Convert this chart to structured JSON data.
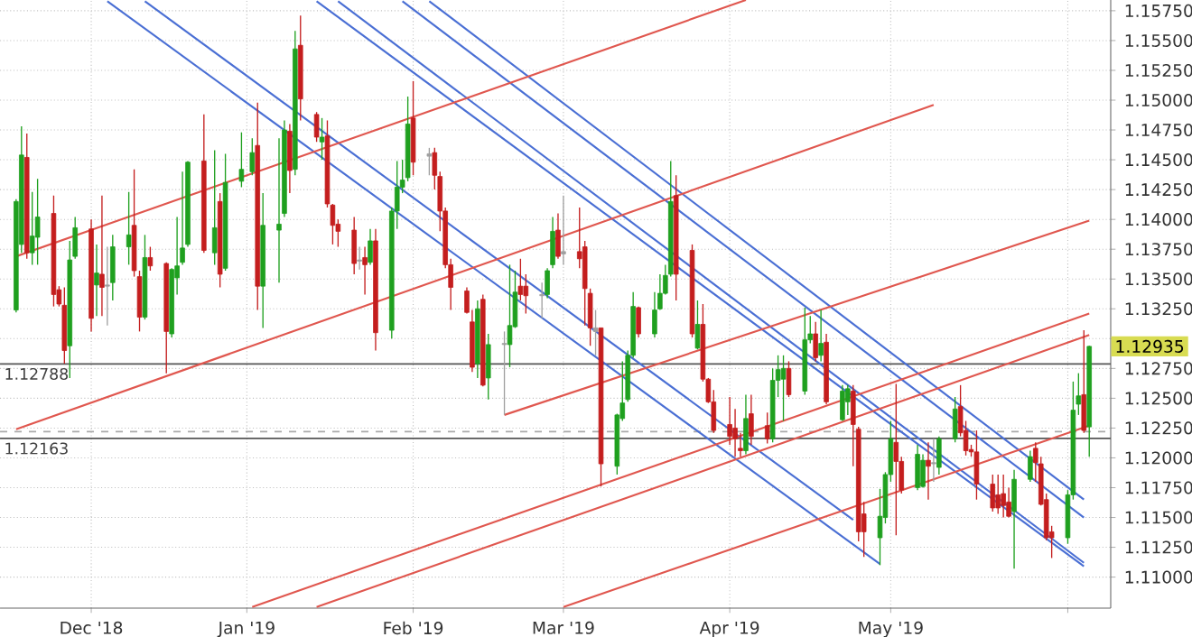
{
  "chart_data": {
    "type": "candlestick",
    "xlim": [
      "2018-11-16",
      "2019-06-11"
    ],
    "ylim": [
      1.1074,
      1.1584
    ],
    "xticks": [
      {
        "value": "2018-12-03",
        "label": "Dec '18"
      },
      {
        "value": "2019-01-01",
        "label": "Jan '19"
      },
      {
        "value": "2019-02-01",
        "label": "Feb '19"
      },
      {
        "value": "2019-03-01",
        "label": "Mar '19"
      },
      {
        "value": "2019-04-01",
        "label": "Apr '19"
      },
      {
        "value": "2019-05-01",
        "label": "May '19"
      },
      {
        "value": "2019-06-03",
        "label": null
      }
    ],
    "yticks": [
      {
        "value": 1.11,
        "label": "1.11000"
      },
      {
        "value": 1.1125,
        "label": "1.11250"
      },
      {
        "value": 1.115,
        "label": "1.11500"
      },
      {
        "value": 1.1175,
        "label": "1.11750"
      },
      {
        "value": 1.12,
        "label": "1.12000"
      },
      {
        "value": 1.1225,
        "label": "1.12250"
      },
      {
        "value": 1.125,
        "label": "1.12500"
      },
      {
        "value": 1.1275,
        "label": "1.12750"
      },
      {
        "value": 1.13,
        "label": null
      },
      {
        "value": 1.1325,
        "label": "1.13250"
      },
      {
        "value": 1.135,
        "label": "1.13500"
      },
      {
        "value": 1.1375,
        "label": "1.13750"
      },
      {
        "value": 1.14,
        "label": "1.14000"
      },
      {
        "value": 1.1425,
        "label": "1.14250"
      },
      {
        "value": 1.145,
        "label": "1.14500"
      },
      {
        "value": 1.1475,
        "label": "1.14750"
      },
      {
        "value": 1.15,
        "label": "1.15000"
      },
      {
        "value": 1.1525,
        "label": "1.15250"
      },
      {
        "value": 1.155,
        "label": "1.15500"
      },
      {
        "value": 1.1575,
        "label": "1.15750"
      }
    ],
    "grid": true,
    "ref_lines": [
      {
        "axis": "y",
        "value": 1.12788,
        "label": "1.12788",
        "color": "#555555"
      },
      {
        "axis": "y",
        "value": 1.12163,
        "label": "1.12163",
        "color": "#555555"
      },
      {
        "axis": "y",
        "value": 1.1222,
        "color": "#aaaaaa",
        "line_style": "dashed"
      }
    ],
    "annotations": [
      "1.12935"
    ],
    "series": [
      {
        "type": "line",
        "color": "#4a6fd4",
        "x": [
          "2018-12-06",
          "2019-04-29"
        ],
        "values": [
          1.1583,
          1.1111
        ]
      },
      {
        "type": "line",
        "color": "#4a6fd4",
        "x": [
          "2018-12-13",
          "2019-04-24"
        ],
        "values": [
          1.1583,
          1.1148
        ]
      },
      {
        "type": "line",
        "color": "#4a6fd4",
        "x": [
          "2019-01-14",
          "2019-06-06"
        ],
        "values": [
          1.1583,
          1.1109
        ]
      },
      {
        "type": "line",
        "color": "#4a6fd4",
        "x": [
          "2019-01-18",
          "2019-06-06"
        ],
        "values": [
          1.1583,
          1.1112
        ]
      },
      {
        "type": "line",
        "color": "#4a6fd4",
        "x": [
          "2019-01-30",
          "2019-06-06"
        ],
        "values": [
          1.1583,
          1.115
        ]
      },
      {
        "type": "line",
        "color": "#4a6fd4",
        "x": [
          "2019-02-04",
          "2019-06-06"
        ],
        "values": [
          1.1583,
          1.1165
        ]
      },
      {
        "type": "line",
        "color": "#e0574f",
        "x": [
          "2018-11-19",
          "2019-04-04"
        ],
        "values": [
          1.1369,
          1.1584
        ]
      },
      {
        "type": "line",
        "color": "#e0574f",
        "x": [
          "2018-11-19",
          "2019-05-09"
        ],
        "values": [
          1.1224,
          1.1496
        ]
      },
      {
        "type": "line",
        "color": "#e0574f",
        "x": [
          "2019-02-18",
          "2019-06-07"
        ],
        "values": [
          1.1236,
          1.1399
        ]
      },
      {
        "type": "line",
        "color": "#e0574f",
        "x": [
          "2019-01-02",
          "2019-06-07"
        ],
        "values": [
          1.1075,
          1.1321
        ]
      },
      {
        "type": "line",
        "color": "#e0574f",
        "x": [
          "2019-01-14",
          "2019-06-07"
        ],
        "values": [
          1.1075,
          1.1303
        ]
      },
      {
        "type": "line",
        "color": "#e0574f",
        "x": [
          "2019-03-01",
          "2019-06-07"
        ],
        "values": [
          1.1075,
          1.1227
        ]
      },
      {
        "x": [
          "2018-11-19",
          "2018-11-20",
          "2018-11-21",
          "2018-11-22",
          "2018-11-23",
          "2018-11-26",
          "2018-11-27",
          "2018-11-28",
          "2018-11-29",
          "2018-11-30",
          "2018-12-03",
          "2018-12-04",
          "2018-12-05",
          "2018-12-06",
          "2018-12-07",
          "2018-12-10",
          "2018-12-11",
          "2018-12-12",
          "2018-12-13",
          "2018-12-14",
          "2018-12-17",
          "2018-12-18",
          "2018-12-19",
          "2018-12-20",
          "2018-12-21",
          "2018-12-24",
          "2018-12-26",
          "2018-12-27",
          "2018-12-28",
          "2018-12-31",
          "2019-01-02",
          "2019-01-03",
          "2019-01-04",
          "2019-01-07",
          "2019-01-08",
          "2019-01-09",
          "2019-01-10",
          "2019-01-11",
          "2019-01-14",
          "2019-01-15",
          "2019-01-16",
          "2019-01-17",
          "2019-01-18",
          "2019-01-21",
          "2019-01-22",
          "2019-01-23",
          "2019-01-24",
          "2019-01-25",
          "2019-01-28",
          "2019-01-29",
          "2019-01-30",
          "2019-01-31",
          "2019-02-01",
          "2019-02-04",
          "2019-02-05",
          "2019-02-06",
          "2019-02-07",
          "2019-02-08",
          "2019-02-11",
          "2019-02-12",
          "2019-02-13",
          "2019-02-14",
          "2019-02-15",
          "2019-02-18",
          "2019-02-19",
          "2019-02-20",
          "2019-02-21",
          "2019-02-22",
          "2019-02-25",
          "2019-02-26",
          "2019-02-27",
          "2019-02-28",
          "2019-03-01",
          "2019-03-04",
          "2019-03-05",
          "2019-03-06",
          "2019-03-07",
          "2019-03-08",
          "2019-03-11",
          "2019-03-12",
          "2019-03-13",
          "2019-03-14",
          "2019-03-15",
          "2019-03-18",
          "2019-03-19",
          "2019-03-20",
          "2019-03-21",
          "2019-03-22",
          "2019-03-25",
          "2019-03-26",
          "2019-03-27",
          "2019-03-28",
          "2019-03-29",
          "2019-04-01",
          "2019-04-02",
          "2019-04-03",
          "2019-04-04",
          "2019-04-05",
          "2019-04-08",
          "2019-04-09",
          "2019-04-10",
          "2019-04-11",
          "2019-04-12",
          "2019-04-15",
          "2019-04-16",
          "2019-04-17",
          "2019-04-18",
          "2019-04-19",
          "2019-04-22",
          "2019-04-23",
          "2019-04-24",
          "2019-04-25",
          "2019-04-26",
          "2019-04-29",
          "2019-04-30",
          "2019-05-01",
          "2019-05-02",
          "2019-05-03",
          "2019-05-06",
          "2019-05-07",
          "2019-05-08",
          "2019-05-09",
          "2019-05-10",
          "2019-05-13",
          "2019-05-14",
          "2019-05-15",
          "2019-05-16",
          "2019-05-17",
          "2019-05-20",
          "2019-05-21",
          "2019-05-22",
          "2019-05-23",
          "2019-05-24",
          "2019-05-27",
          "2019-05-28",
          "2019-05-29",
          "2019-05-30",
          "2019-05-31",
          "2019-06-03",
          "2019-06-04",
          "2019-06-05",
          "2019-06-06",
          "2019-06-07"
        ],
        "ohlc": [
          [
            1.1324,
            1.1417,
            1.1322,
            1.1415
          ],
          [
            1.1379,
            1.1478,
            1.1372,
            1.1454
          ],
          [
            1.1452,
            1.1472,
            1.1367,
            1.1372
          ],
          [
            1.1372,
            1.1423,
            1.1362,
            1.1386
          ],
          [
            1.1385,
            1.1434,
            1.1362,
            1.1402
          ],
          [
            1.1405,
            1.142,
            1.1327,
            1.1337
          ],
          [
            1.1341,
            1.1344,
            1.1327,
            1.1329
          ],
          [
            1.1328,
            1.1343,
            1.1279,
            1.129
          ],
          [
            1.1294,
            1.1382,
            1.1267,
            1.1366
          ],
          [
            1.1369,
            1.1402,
            1.1367,
            1.1393
          ],
          [
            1.1392,
            1.14,
            1.1306,
            1.1317
          ],
          [
            1.1345,
            1.1379,
            1.1319,
            1.1355
          ],
          [
            1.1354,
            1.142,
            1.1319,
            1.1343
          ],
          [
            1.1345,
            1.1377,
            1.1311,
            1.1344
          ],
          [
            1.1347,
            1.1387,
            1.1332,
            1.1377
          ],
          [
            1.1377,
            1.1423,
            1.1362,
            1.1387
          ],
          [
            1.1395,
            1.1442,
            1.1352,
            1.1357
          ],
          [
            1.1352,
            1.1357,
            1.1306,
            1.1318
          ],
          [
            1.1318,
            1.1387,
            1.1316,
            1.1368
          ],
          [
            1.1368,
            1.1377,
            1.1357,
            1.1361
          ],
          [
            1.1363,
            1.1364,
            1.1271,
            1.1306
          ],
          [
            1.1304,
            1.1359,
            1.1301,
            1.1358
          ],
          [
            1.1351,
            1.1402,
            1.1337,
            1.1361
          ],
          [
            1.1364,
            1.144,
            1.1362,
            1.1376
          ],
          [
            1.1379,
            1.1449,
            1.1377,
            1.1448
          ],
          [
            1.1449,
            1.1488,
            1.1372,
            1.1374
          ],
          [
            1.1372,
            1.1458,
            1.1362,
            1.1393
          ],
          [
            1.1415,
            1.1422,
            1.1343,
            1.1354
          ],
          [
            1.1359,
            1.1455,
            1.1357,
            1.1431
          ],
          [
            1.1432,
            1.1473,
            1.1427,
            1.1442
          ],
          [
            1.144,
            1.1468,
            1.1437,
            1.1456
          ],
          [
            1.1462,
            1.1498,
            1.1324,
            1.1344
          ],
          [
            1.1344,
            1.1422,
            1.1309,
            1.1395
          ],
          [
            1.1391,
            1.1468,
            1.1347,
            1.1396
          ],
          [
            1.1405,
            1.1483,
            1.1402,
            1.1475
          ],
          [
            1.1474,
            1.148,
            1.1422,
            1.1441
          ],
          [
            1.1442,
            1.1558,
            1.1437,
            1.1543
          ],
          [
            1.1546,
            1.1571,
            1.1483,
            1.1501
          ],
          [
            1.1488,
            1.149,
            1.1465,
            1.1469
          ],
          [
            1.1465,
            1.1485,
            1.145,
            1.1469
          ],
          [
            1.147,
            1.1483,
            1.141,
            1.1413
          ],
          [
            1.1412,
            1.1413,
            1.1379,
            1.1395
          ],
          [
            1.1396,
            1.14,
            1.1377,
            1.139
          ],
          [
            1.1391,
            1.1402,
            1.1354,
            1.1363
          ],
          [
            1.1366,
            1.1377,
            1.1358,
            1.1365
          ],
          [
            1.1368,
            1.1377,
            1.1337,
            1.1362
          ],
          [
            1.1364,
            1.1392,
            1.1362,
            1.1382
          ],
          [
            1.1382,
            1.1392,
            1.129,
            1.1305
          ],
          [
            1.1307,
            1.141,
            1.13,
            1.1407
          ],
          [
            1.1407,
            1.1449,
            1.1392,
            1.1427
          ],
          [
            1.1427,
            1.145,
            1.1422,
            1.1433
          ],
          [
            1.1435,
            1.1503,
            1.1432,
            1.148
          ],
          [
            1.1485,
            1.1516,
            1.1437,
            1.1448
          ],
          [
            1.1455,
            1.146,
            1.1437,
            1.1453
          ],
          [
            1.1456,
            1.146,
            1.1425,
            1.1437
          ],
          [
            1.1436,
            1.144,
            1.139,
            1.1407
          ],
          [
            1.1407,
            1.141,
            1.1359,
            1.1362
          ],
          [
            1.1362,
            1.1367,
            1.1324,
            1.1343
          ],
          [
            1.134,
            1.1343,
            1.1321,
            1.1322
          ],
          [
            1.1314,
            1.1324,
            1.1272,
            1.1276
          ],
          [
            1.1279,
            1.1332,
            1.1267,
            1.1325
          ],
          [
            1.1333,
            1.1337,
            1.126,
            1.1261
          ],
          [
            1.1267,
            1.1304,
            1.1249,
            1.1295
          ],
          [
            1.1295,
            1.1306,
            1.1236,
            1.1296
          ],
          [
            1.1295,
            1.1362,
            1.1276,
            1.1311
          ],
          [
            1.131,
            1.1357,
            1.1309,
            1.1339
          ],
          [
            1.1344,
            1.1367,
            1.1332,
            1.1337
          ],
          [
            1.1344,
            1.1354,
            1.1321,
            1.1336
          ],
          [
            1.1337,
            1.1347,
            1.1317,
            1.1336
          ],
          [
            1.1337,
            1.1359,
            1.1334,
            1.1357
          ],
          [
            1.1362,
            1.1402,
            1.1359,
            1.139
          ],
          [
            1.1391,
            1.1405,
            1.1367,
            1.1369
          ],
          [
            1.1373,
            1.142,
            1.1362,
            1.1371
          ],
          [
            1.1373,
            1.141,
            1.1359,
            1.1367
          ],
          [
            1.1377,
            1.1382,
            1.1311,
            1.1342
          ],
          [
            1.1338,
            1.1342,
            1.1294,
            1.1309
          ],
          [
            1.1309,
            1.1324,
            1.1286,
            1.1306
          ],
          [
            1.1309,
            1.1309,
            1.1176,
            1.1195
          ],
          [
            1.1193,
            1.1237,
            1.1186,
            1.1236
          ],
          [
            1.1233,
            1.1281,
            1.1231,
            1.1246
          ],
          [
            1.1249,
            1.129,
            1.1247,
            1.1286
          ],
          [
            1.1286,
            1.1339,
            1.1284,
            1.1327
          ],
          [
            1.1326,
            1.1327,
            1.1301,
            1.1304
          ],
          [
            1.1304,
            1.1339,
            1.1301,
            1.1324
          ],
          [
            1.1325,
            1.1354,
            1.1324,
            1.1338
          ],
          [
            1.1338,
            1.1362,
            1.1337,
            1.1353
          ],
          [
            1.1354,
            1.1449,
            1.1352,
            1.1415
          ],
          [
            1.142,
            1.1437,
            1.1332,
            1.1354
          ],
          [
            1.1374,
            1.1379,
            1.1301,
            1.1304
          ],
          [
            1.1292,
            1.1332,
            1.1291,
            1.1312
          ],
          [
            1.1312,
            1.1329,
            1.1264,
            1.1266
          ],
          [
            1.1266,
            1.1267,
            1.1246,
            1.1247
          ],
          [
            1.1247,
            1.1257,
            1.1221,
            1.1223
          ],
          [
            1.1228,
            1.1251,
            1.1211,
            1.1218
          ],
          [
            1.1225,
            1.1241,
            1.1201,
            1.1216
          ],
          [
            1.1208,
            1.1221,
            1.1201,
            1.1206
          ],
          [
            1.1206,
            1.1253,
            1.1203,
            1.1233
          ],
          [
            1.1237,
            1.1253,
            1.1211,
            1.1218
          ],
          [
            1.1227,
            1.1238,
            1.1212,
            1.1216
          ],
          [
            1.1216,
            1.1275,
            1.1213,
            1.1265
          ],
          [
            1.1265,
            1.1286,
            1.1251,
            1.1274
          ],
          [
            1.1266,
            1.1286,
            1.1231,
            1.1275
          ],
          [
            1.1275,
            1.1281,
            1.1251,
            1.1253
          ],
          [
            1.1256,
            1.1326,
            1.1253,
            1.1299
          ],
          [
            1.1299,
            1.1319,
            1.1296,
            1.1304
          ],
          [
            1.1304,
            1.1314,
            1.1281,
            1.1284
          ],
          [
            1.1286,
            1.1324,
            1.1281,
            1.1296
          ],
          [
            1.1297,
            1.1304,
            1.1245,
            1.1247
          ],
          [
            1.1232,
            1.1261,
            1.1231,
            1.1256
          ],
          [
            1.1247,
            1.1261,
            1.1236,
            1.1258
          ],
          [
            1.1256,
            1.1261,
            1.1193,
            1.1228
          ],
          [
            1.1224,
            1.1226,
            1.113,
            1.1138
          ],
          [
            1.1153,
            1.1163,
            1.1117,
            1.1138
          ],
          [
            1.1133,
            1.1174,
            1.111,
            1.1151
          ],
          [
            1.115,
            1.1188,
            1.1145,
            1.1186
          ],
          [
            1.1186,
            1.1231,
            1.118,
            1.1216
          ],
          [
            1.1213,
            1.1262,
            1.1135,
            1.1197
          ],
          [
            1.1197,
            1.1201,
            1.117,
            1.1173
          ],
          [
            1.1175,
            1.1211,
            1.1173,
            1.1203
          ],
          [
            1.1176,
            1.1203,
            1.1175,
            1.1198
          ],
          [
            1.1198,
            1.1213,
            1.1165,
            1.1193
          ],
          [
            1.1196,
            1.1216,
            1.118,
            1.1195
          ],
          [
            1.1192,
            1.1218,
            1.1186,
            1.1216
          ],
          [
            1.1216,
            1.1251,
            1.1213,
            1.1241
          ],
          [
            1.1243,
            1.1261,
            1.1218,
            1.1221
          ],
          [
            1.1223,
            1.1231,
            1.1202,
            1.1206
          ],
          [
            1.1207,
            1.1211,
            1.1201,
            1.1205
          ],
          [
            1.1205,
            1.1223,
            1.1165,
            1.1178
          ],
          [
            1.1178,
            1.1186,
            1.1155,
            1.1158
          ],
          [
            1.1169,
            1.1186,
            1.1153,
            1.1158
          ],
          [
            1.117,
            1.1186,
            1.115,
            1.116
          ],
          [
            1.1163,
            1.1175,
            1.115,
            1.1151
          ],
          [
            1.1155,
            1.119,
            1.1107,
            1.1182
          ],
          [
            1.1182,
            1.1206,
            1.118,
            1.1201
          ],
          [
            1.1208,
            1.1213,
            1.118,
            1.1196
          ],
          [
            1.1195,
            1.1201,
            1.116,
            1.1161
          ],
          [
            1.1165,
            1.117,
            1.1131,
            1.1133
          ],
          [
            1.1138,
            1.1143,
            1.1116,
            1.1133
          ],
          [
            1.1133,
            1.1173,
            1.1128,
            1.1169
          ],
          [
            1.1169,
            1.1264,
            1.1165,
            1.124
          ],
          [
            1.1245,
            1.1271,
            1.1236,
            1.1252
          ],
          [
            1.1253,
            1.1307,
            1.1221,
            1.1223
          ],
          [
            1.1226,
            1.1294,
            1.1201,
            1.12935
          ]
        ],
        "colors": [
          "#1fa01f",
          "#1fa01f",
          "#c41e1e",
          "#1fa01f",
          "#1fa01f",
          "#c41e1e",
          "#c41e1e",
          "#c41e1e",
          "#1fa01f",
          "#1fa01f",
          "#c41e1e",
          "#1fa01f",
          "#c41e1e",
          "#a0a0a0",
          "#1fa01f",
          "#1fa01f",
          "#c41e1e",
          "#c41e1e",
          "#1fa01f",
          "#c41e1e",
          "#c41e1e",
          "#1fa01f",
          "#1fa01f",
          "#1fa01f",
          "#1fa01f",
          "#c41e1e",
          "#1fa01f",
          "#c41e1e",
          "#1fa01f",
          "#1fa01f",
          "#1fa01f",
          "#c41e1e",
          "#1fa01f",
          "#1fa01f",
          "#1fa01f",
          "#c41e1e",
          "#1fa01f",
          "#c41e1e",
          "#c41e1e",
          "#1fa01f",
          "#c41e1e",
          "#c41e1e",
          "#c41e1e",
          "#c41e1e",
          "#a0a0a0",
          "#c41e1e",
          "#1fa01f",
          "#c41e1e",
          "#1fa01f",
          "#1fa01f",
          "#1fa01f",
          "#1fa01f",
          "#c41e1e",
          "#a0a0a0",
          "#c41e1e",
          "#c41e1e",
          "#c41e1e",
          "#c41e1e",
          "#c41e1e",
          "#c41e1e",
          "#1fa01f",
          "#c41e1e",
          "#1fa01f",
          "#a0a0a0",
          "#1fa01f",
          "#1fa01f",
          "#c41e1e",
          "#c41e1e",
          "#a0a0a0",
          "#1fa01f",
          "#1fa01f",
          "#c41e1e",
          "#a0a0a0",
          "#c41e1e",
          "#c41e1e",
          "#c41e1e",
          "#a0a0a0",
          "#c41e1e",
          "#1fa01f",
          "#1fa01f",
          "#1fa01f",
          "#1fa01f",
          "#c41e1e",
          "#1fa01f",
          "#1fa01f",
          "#1fa01f",
          "#1fa01f",
          "#c41e1e",
          "#c41e1e",
          "#1fa01f",
          "#c41e1e",
          "#c41e1e",
          "#c41e1e",
          "#c41e1e",
          "#c41e1e",
          "#c41e1e",
          "#1fa01f",
          "#c41e1e",
          "#c41e1e",
          "#1fa01f",
          "#1fa01f",
          "#1fa01f",
          "#c41e1e",
          "#1fa01f",
          "#1fa01f",
          "#c41e1e",
          "#1fa01f",
          "#c41e1e",
          "#1fa01f",
          "#1fa01f",
          "#c41e1e",
          "#c41e1e",
          "#c41e1e",
          "#1fa01f",
          "#1fa01f",
          "#1fa01f",
          "#c41e1e",
          "#c41e1e",
          "#1fa01f",
          "#1fa01f",
          "#c41e1e",
          "#a0a0a0",
          "#1fa01f",
          "#1fa01f",
          "#c41e1e",
          "#c41e1e",
          "#c41e1e",
          "#c41e1e",
          "#c41e1e",
          "#c41e1e",
          "#c41e1e",
          "#c41e1e",
          "#1fa01f",
          "#1fa01f",
          "#c41e1e",
          "#c41e1e",
          "#c41e1e",
          "#c41e1e",
          "#1fa01f",
          "#1fa01f",
          "#1fa01f",
          "#c41e1e",
          "#1fa01f"
        ]
      }
    ]
  }
}
